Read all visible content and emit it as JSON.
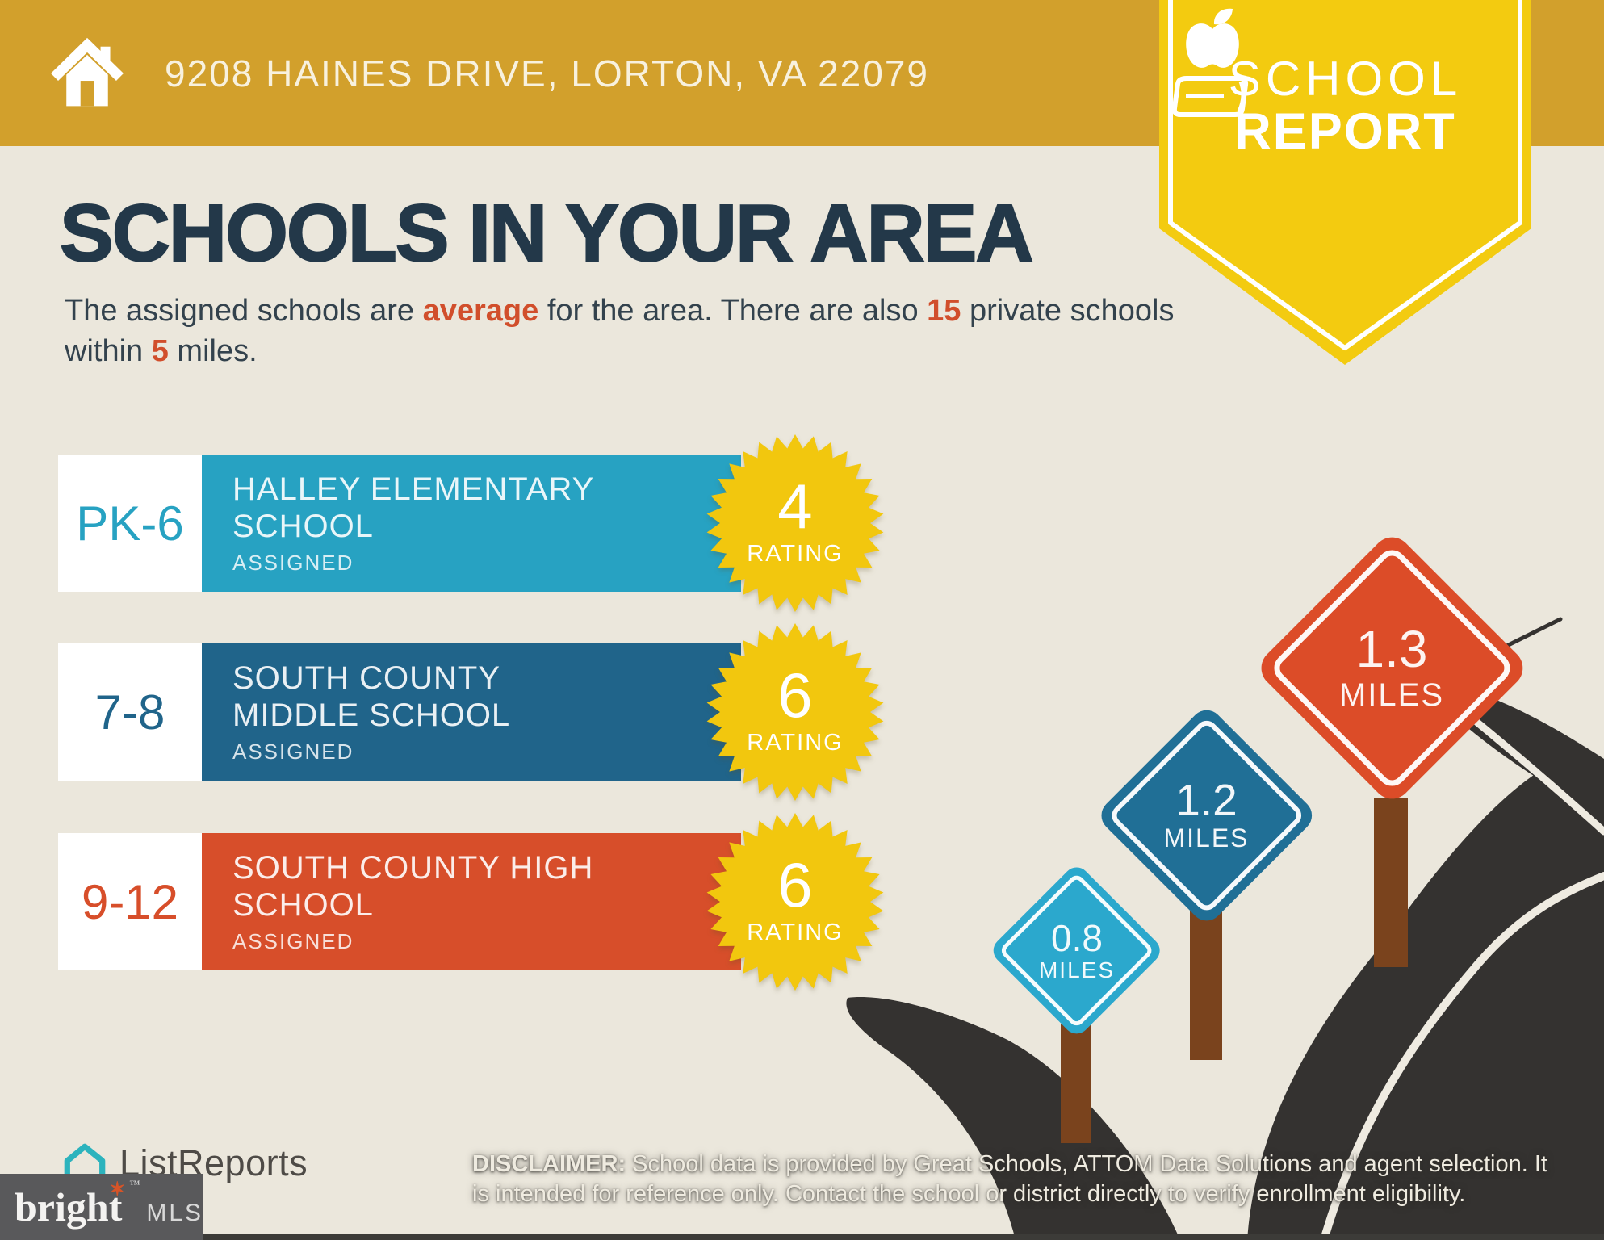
{
  "header": {
    "address": "9208 HAINES DRIVE, LORTON, VA 22079"
  },
  "ribbon": {
    "line1": "SCHOOL",
    "line2": "REPORT"
  },
  "intro": {
    "title": "SCHOOLS IN YOUR AREA",
    "sub": {
      "p1": "The assigned schools are ",
      "hl1": "average",
      "p2": " for the area. There are also ",
      "hl2": "15",
      "p3": " private schools within ",
      "hl3": "5",
      "p4": " miles."
    }
  },
  "schools": [
    {
      "grades": "PK-6",
      "name_line1": "HALLEY ELEMENTARY",
      "name_line2": "SCHOOL",
      "status": "ASSIGNED",
      "rating": "4",
      "rating_label": "RATING",
      "color": "#27A2C2"
    },
    {
      "grades": "7-8",
      "name_line1": "SOUTH COUNTY",
      "name_line2": "MIDDLE SCHOOL",
      "status": "ASSIGNED",
      "rating": "6",
      "rating_label": "RATING",
      "color": "#20648A"
    },
    {
      "grades": "9-12",
      "name_line1": "SOUTH COUNTY HIGH",
      "name_line2": "SCHOOL",
      "status": "ASSIGNED",
      "rating": "6",
      "rating_label": "RATING",
      "color": "#D74E2A"
    }
  ],
  "signs": [
    {
      "value": "0.8",
      "unit": "MILES",
      "color": "#2BA8CD"
    },
    {
      "value": "1.2",
      "unit": "MILES",
      "color": "#206F96"
    },
    {
      "value": "1.3",
      "unit": "MILES",
      "color": "#DC4C28"
    }
  ],
  "disclaimer": {
    "label": "DISCLAIMER:",
    "line1": " School data is provided by Great Schools, ATTOM Data Solutions and agent selection. It",
    "line2": "is intended for reference only. Contact the school or district directly to verify enrollment eligibility."
  },
  "footer": {
    "listreports": "ListReports",
    "bright": "bright",
    "tm": "™",
    "mls": "MLS"
  },
  "colors": {
    "band_gold": "#D2A02C",
    "ribbon_yellow": "#F3CB10",
    "star_yellow": "#F2C70E",
    "background_cream": "#EBE7DC",
    "heading_navy": "#233849",
    "body_text": "#33424D",
    "accent_red": "#D14E2B",
    "road_dark": "#343230",
    "road_line": "#EFEBE1",
    "post_brown": "#7A431D",
    "banner_text": "#F8F1DE",
    "bright_box_gray": "#59595B",
    "bright_star_orange": "#D75427",
    "listreports_teal": "#2CB3BD",
    "listreports_text": "#4E4B47",
    "bottom_strip": "#3C3B38"
  }
}
